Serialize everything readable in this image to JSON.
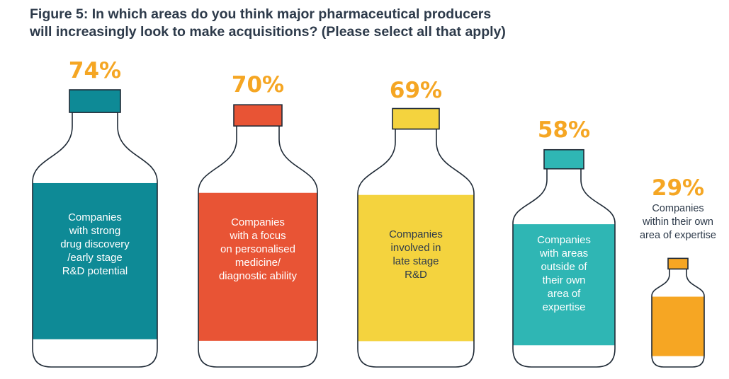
{
  "figure": {
    "title_line1": "Figure 5: In which areas do you think major pharmaceutical producers",
    "title_line2": "will increasingly look to make acquisitions? (Please select all that apply)"
  },
  "chart_data": {
    "type": "bar",
    "unit": "%",
    "title": "Figure 5: In which areas do you think major pharmaceutical producers will increasingly look to make acquisitions? (Please select all that apply)",
    "categories": [
      "Companies with strong drug discovery /early stage R&D potential",
      "Companies with a focus on personalised medicine/ diagnostic ability",
      "Companies involved in late stage R&D",
      "Companies with areas outside of their own area of expertise",
      "Companies within their own area of expertise"
    ],
    "values": [
      74,
      70,
      69,
      58,
      29
    ],
    "value_labels": [
      "74%",
      "70%",
      "69%",
      "58%",
      "29%"
    ],
    "category_label_lines": [
      "Companies\nwith strong\ndrug discovery\n/early stage\nR&D potential",
      "Companies\nwith a focus\non personalised\nmedicine/\ndiagnostic ability",
      "Companies\ninvolved in\nlate stage\nR&D",
      "Companies\nwith areas\noutside of\ntheir own\narea of\nexpertise",
      "Companies\nwithin their own\narea of expertise"
    ],
    "colors": [
      "#0e8a96",
      "#e85435",
      "#f4d33e",
      "#2fb6b4",
      "#f6a623"
    ],
    "legend": "none",
    "grid": false
  }
}
